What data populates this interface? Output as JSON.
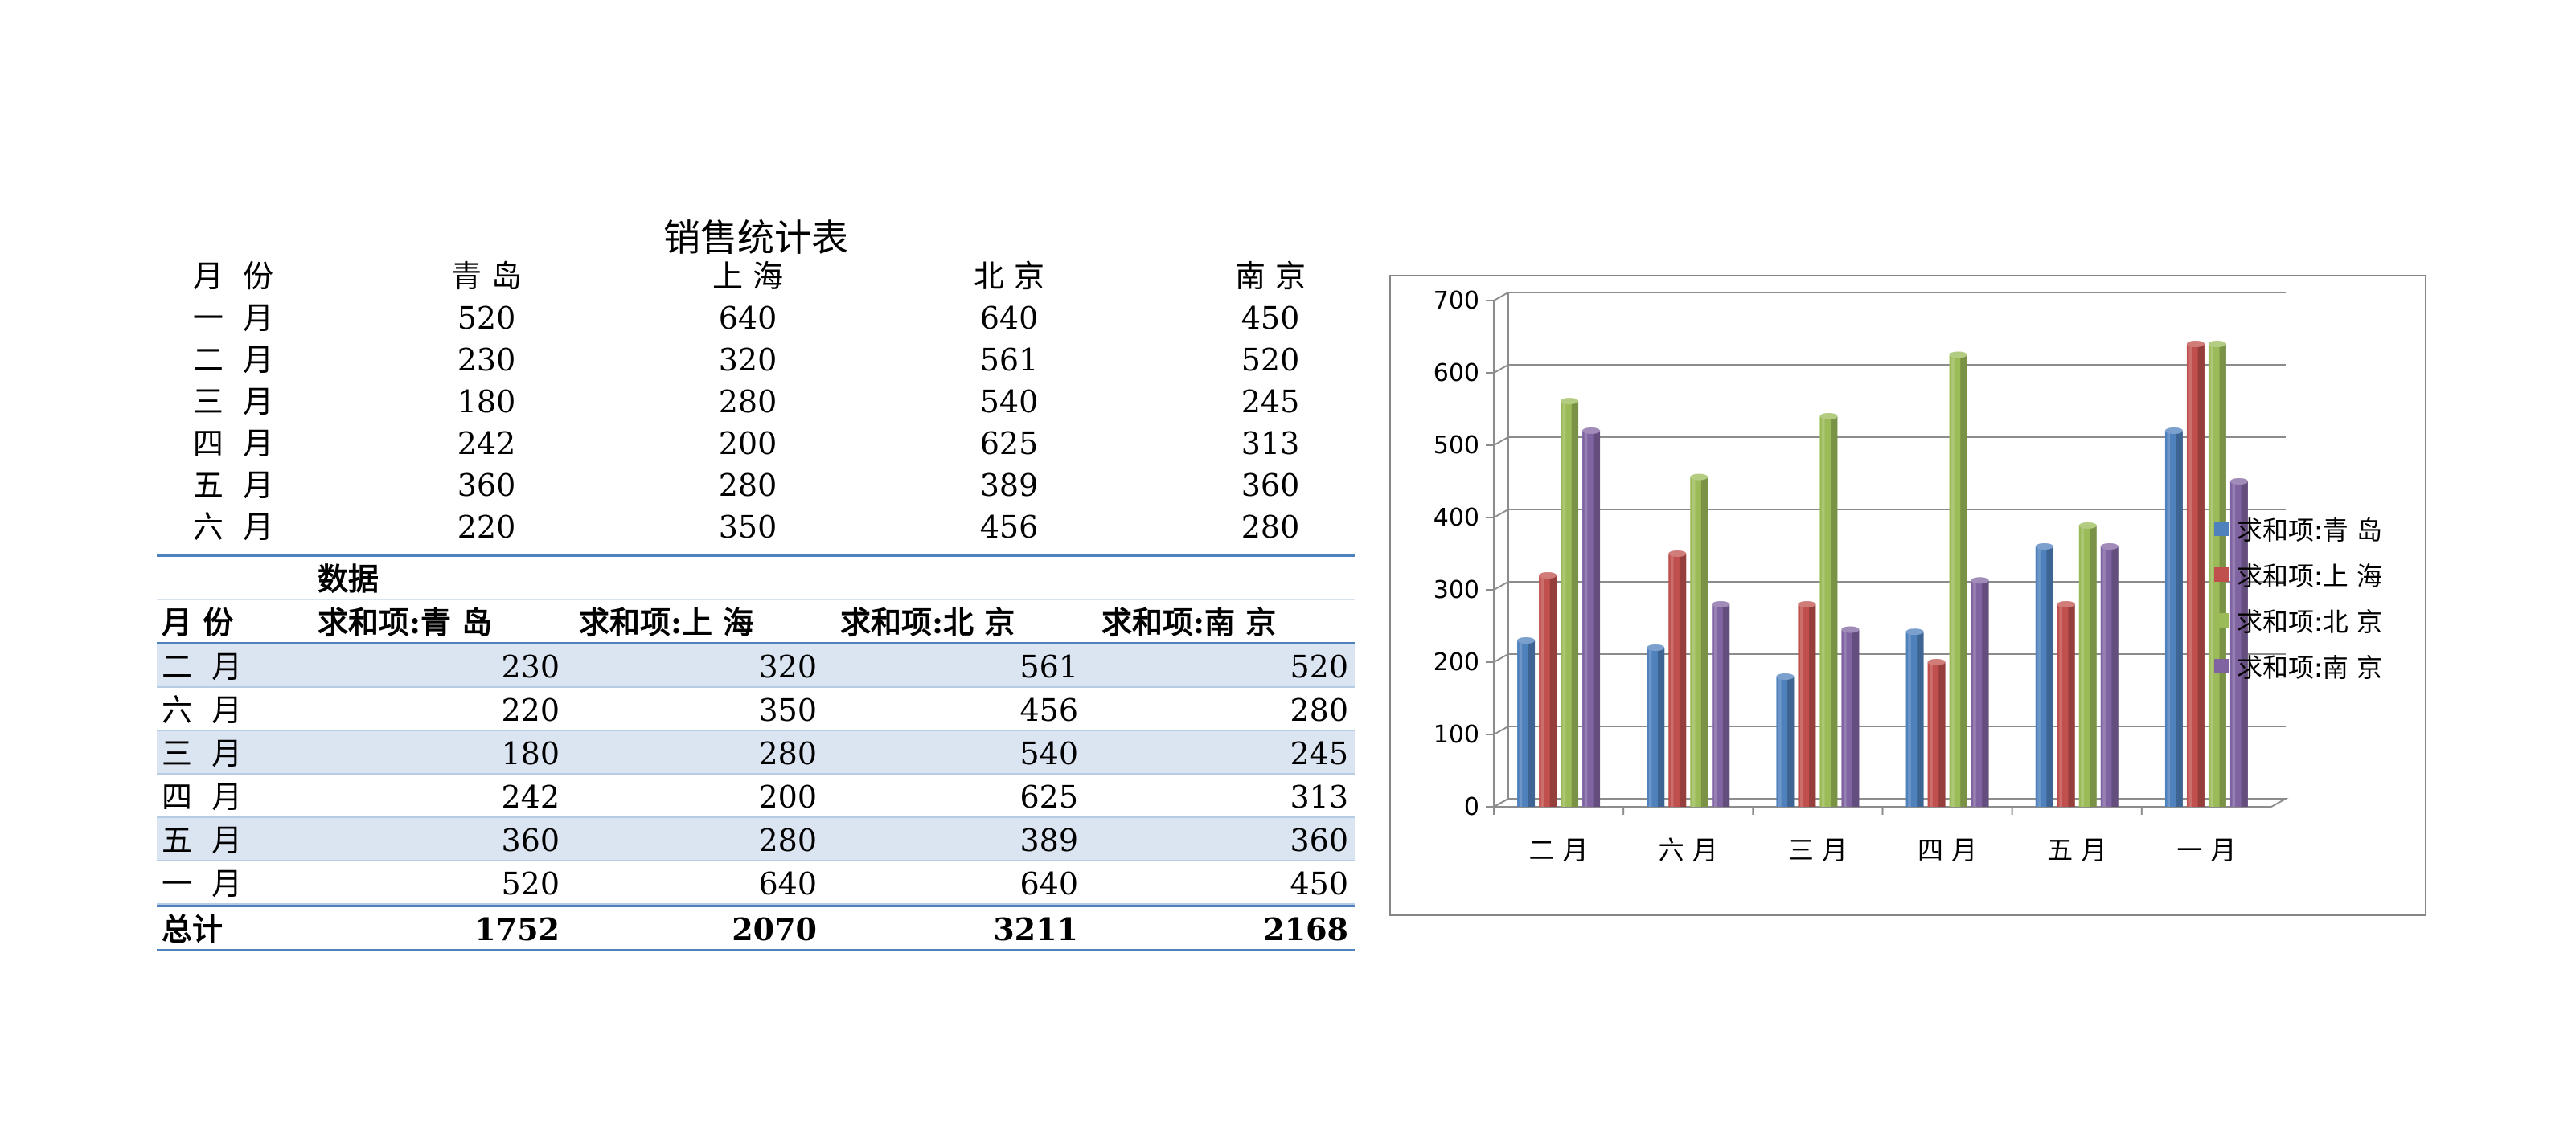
{
  "title": "销售统计表",
  "raw_table": {
    "headers": [
      "月  份",
      "青 岛",
      "上 海",
      "北 京",
      "南 京"
    ],
    "rows": [
      [
        "一  月",
        "520",
        "640",
        "640",
        "450"
      ],
      [
        "二  月",
        "230",
        "320",
        "561",
        "520"
      ],
      [
        "三  月",
        "180",
        "280",
        "540",
        "245"
      ],
      [
        "四  月",
        "242",
        "200",
        "625",
        "313"
      ],
      [
        "五  月",
        "360",
        "280",
        "389",
        "360"
      ],
      [
        "六  月",
        "220",
        "350",
        "456",
        "280"
      ]
    ]
  },
  "pivot_table": {
    "data_label": "数据",
    "headers": [
      "月 份",
      "求和项:青 岛",
      "求和项:上 海",
      "求和项:北 京",
      "求和项:南 京"
    ],
    "rows": [
      [
        "二  月",
        "230",
        "320",
        "561",
        "520"
      ],
      [
        "六  月",
        "220",
        "350",
        "456",
        "280"
      ],
      [
        "三  月",
        "180",
        "280",
        "540",
        "245"
      ],
      [
        "四  月",
        "242",
        "200",
        "625",
        "313"
      ],
      [
        "五  月",
        "360",
        "280",
        "389",
        "360"
      ],
      [
        "一  月",
        "520",
        "640",
        "640",
        "450"
      ]
    ],
    "total": [
      "总计",
      "1752",
      "2070",
      "3211",
      "2168"
    ]
  },
  "chart_data": {
    "type": "bar",
    "categories": [
      "二 月",
      "六 月",
      "三 月",
      "四 月",
      "五 月",
      "一 月"
    ],
    "series": [
      {
        "name": "求和项:青 岛",
        "values": [
          230,
          220,
          180,
          242,
          360,
          520
        ],
        "color": "#4f81bd"
      },
      {
        "name": "求和项:上 海",
        "values": [
          320,
          350,
          280,
          200,
          280,
          640
        ],
        "color": "#c0504d"
      },
      {
        "name": "求和项:北 京",
        "values": [
          561,
          456,
          540,
          625,
          389,
          640
        ],
        "color": "#9bbb59"
      },
      {
        "name": "求和项:南 京",
        "values": [
          520,
          280,
          245,
          313,
          360,
          450
        ],
        "color": "#8064a2"
      }
    ],
    "yticks": [
      "0",
      "100",
      "200",
      "300",
      "400",
      "500",
      "600",
      "700"
    ],
    "ylim": [
      0,
      700
    ],
    "grid": true,
    "legend_position": "right"
  }
}
